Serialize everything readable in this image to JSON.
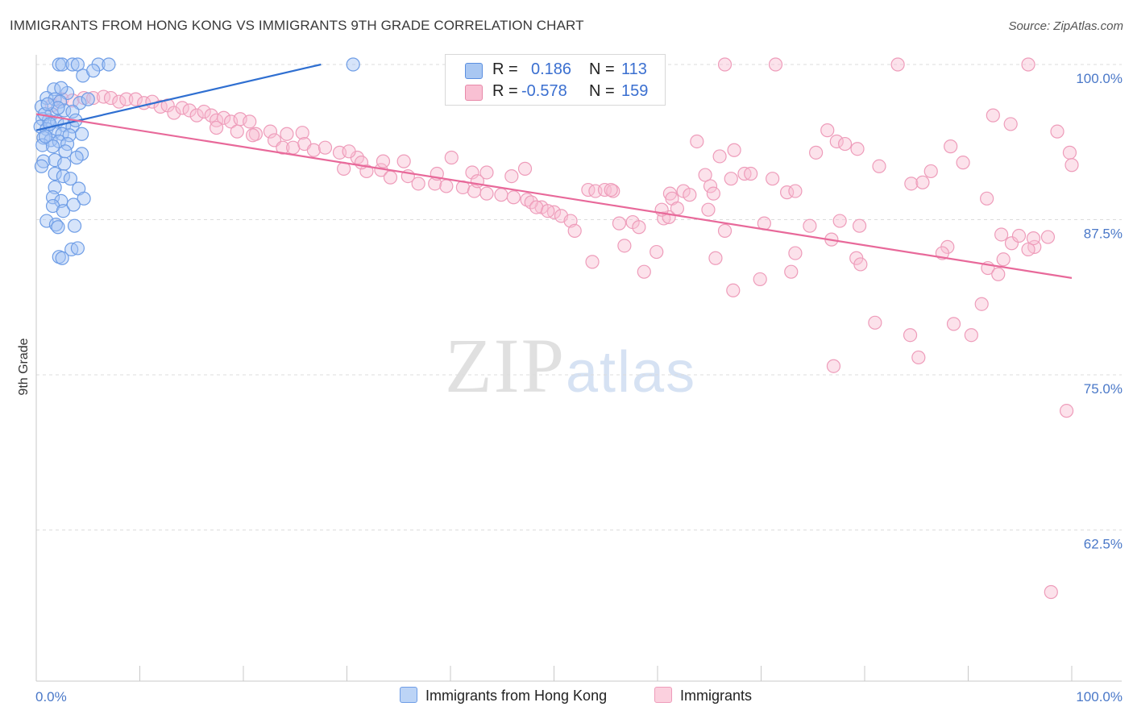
{
  "header": {
    "title": "IMMIGRANTS FROM HONG KONG VS IMMIGRANTS 9TH GRADE CORRELATION CHART",
    "source": "Source: ZipAtlas.com"
  },
  "watermark": {
    "zip": "ZIP",
    "atlas": "atlas"
  },
  "legend": {
    "rows": [
      {
        "r_label": "R =",
        "r_value": "0.186",
        "n_label": "N =",
        "n_value": "113",
        "color": "#a9c7f2",
        "border": "#5b8fe0"
      },
      {
        "r_label": "R =",
        "r_value": "-0.578",
        "n_label": "N =",
        "n_value": "159",
        "color": "#f9c0d3",
        "border": "#e889a9"
      }
    ]
  },
  "bottom_legend": {
    "items": [
      {
        "label": "Immigrants from Hong Kong",
        "color": "#bcd4f6",
        "border": "#6e9de6"
      },
      {
        "label": "Immigrants",
        "color": "#fbd0de",
        "border": "#ee9cba"
      }
    ]
  },
  "chart_data": {
    "type": "scatter",
    "ylabel": "9th Grade",
    "x_tick_labels": [
      "0.0%",
      "100.0%"
    ],
    "y_tick_labels": [
      "100.0%",
      "87.5%",
      "75.0%",
      "62.5%"
    ],
    "y_ticks": [
      100.0,
      87.5,
      75.0,
      62.5
    ],
    "xlim": [
      0,
      100
    ],
    "ylim": [
      50.0,
      101.0
    ],
    "grid": true,
    "colors": {
      "blue": "#6e9de6",
      "blue_fill": "rgba(165,196,243,0.45)",
      "pink": "#ee9cba",
      "pink_fill": "rgba(249,190,210,0.45)",
      "blue_line": "#2f6fd1",
      "pink_line": "#e8699a"
    },
    "series": [
      {
        "name": "Immigrants from Hong Kong",
        "trend": {
          "x": [
            0.0,
            27.5
          ],
          "y": [
            94.7,
            100.0
          ]
        },
        "points": [
          [
            2.2,
            100
          ],
          [
            2.5,
            100
          ],
          [
            3.5,
            100
          ],
          [
            4.0,
            100
          ],
          [
            6.0,
            100
          ],
          [
            7.0,
            100
          ],
          [
            30.6,
            100
          ],
          [
            4.5,
            99.1
          ],
          [
            5.5,
            99.5
          ],
          [
            1.7,
            98.0
          ],
          [
            3.0,
            97.7
          ],
          [
            2.4,
            98.1
          ],
          [
            1.0,
            97.3
          ],
          [
            1.8,
            97.2
          ],
          [
            2.3,
            97.0
          ],
          [
            4.2,
            96.9
          ],
          [
            5.0,
            97.2
          ],
          [
            0.5,
            96.6
          ],
          [
            1.5,
            96.0
          ],
          [
            2.7,
            96.3
          ],
          [
            3.5,
            96.2
          ],
          [
            0.6,
            95.6
          ],
          [
            1.2,
            95.5
          ],
          [
            2.0,
            95.4
          ],
          [
            2.7,
            95.1
          ],
          [
            3.5,
            95.0
          ],
          [
            0.4,
            95.0
          ],
          [
            1.0,
            94.8
          ],
          [
            1.8,
            94.6
          ],
          [
            2.5,
            94.4
          ],
          [
            3.2,
            94.3
          ],
          [
            0.7,
            94.1
          ],
          [
            1.4,
            93.9
          ],
          [
            2.2,
            93.8
          ],
          [
            3.0,
            93.6
          ],
          [
            4.4,
            94.4
          ],
          [
            0.6,
            93.5
          ],
          [
            1.6,
            93.4
          ],
          [
            2.8,
            93.0
          ],
          [
            4.4,
            92.8
          ],
          [
            0.7,
            92.2
          ],
          [
            1.8,
            92.3
          ],
          [
            2.7,
            92.0
          ],
          [
            3.9,
            92.5
          ],
          [
            0.5,
            91.8
          ],
          [
            1.8,
            91.2
          ],
          [
            2.6,
            91.0
          ],
          [
            3.3,
            90.8
          ],
          [
            1.8,
            90.1
          ],
          [
            4.1,
            90.0
          ],
          [
            1.6,
            89.3
          ],
          [
            2.4,
            89.0
          ],
          [
            4.6,
            89.2
          ],
          [
            1.6,
            88.6
          ],
          [
            2.6,
            88.2
          ],
          [
            3.6,
            88.7
          ],
          [
            1.0,
            87.4
          ],
          [
            1.9,
            87.1
          ],
          [
            3.7,
            87.0
          ],
          [
            2.1,
            86.9
          ],
          [
            3.4,
            85.1
          ],
          [
            4.0,
            85.2
          ],
          [
            2.2,
            84.5
          ],
          [
            2.5,
            84.4
          ],
          [
            0.8,
            96.0
          ],
          [
            1.3,
            95.2
          ],
          [
            2.1,
            96.5
          ],
          [
            0.9,
            94.2
          ],
          [
            1.1,
            96.8
          ],
          [
            3.8,
            95.5
          ]
        ]
      },
      {
        "name": "Immigrants",
        "trend": {
          "x": [
            0.0,
            100.0
          ],
          "y": [
            96.0,
            82.8
          ]
        },
        "points": [
          [
            66.5,
            100
          ],
          [
            71.4,
            100
          ],
          [
            83.2,
            100
          ],
          [
            95.8,
            100
          ],
          [
            1.5,
            96.7
          ],
          [
            2.5,
            97.2
          ],
          [
            3.5,
            97.1
          ],
          [
            4.6,
            97.3
          ],
          [
            5.5,
            97.3
          ],
          [
            6.5,
            97.4
          ],
          [
            7.2,
            97.3
          ],
          [
            8.0,
            97.0
          ],
          [
            8.7,
            97.2
          ],
          [
            9.6,
            97.2
          ],
          [
            10.4,
            96.9
          ],
          [
            11.2,
            97.0
          ],
          [
            12.0,
            96.6
          ],
          [
            12.7,
            96.7
          ],
          [
            13.3,
            96.1
          ],
          [
            14.1,
            96.5
          ],
          [
            14.8,
            96.3
          ],
          [
            15.5,
            95.9
          ],
          [
            16.2,
            96.2
          ],
          [
            16.9,
            95.9
          ],
          [
            17.4,
            95.5
          ],
          [
            18.1,
            95.7
          ],
          [
            18.8,
            95.4
          ],
          [
            19.7,
            95.6
          ],
          [
            20.6,
            95.4
          ],
          [
            17.4,
            94.9
          ],
          [
            19.4,
            94.6
          ],
          [
            21.2,
            94.4
          ],
          [
            22.6,
            94.6
          ],
          [
            24.2,
            94.4
          ],
          [
            25.7,
            94.5
          ],
          [
            20.9,
            94.3
          ],
          [
            23.0,
            93.9
          ],
          [
            23.8,
            93.3
          ],
          [
            24.8,
            93.3
          ],
          [
            25.9,
            93.6
          ],
          [
            26.8,
            93.1
          ],
          [
            27.9,
            93.3
          ],
          [
            29.3,
            92.9
          ],
          [
            31.0,
            92.5
          ],
          [
            29.7,
            91.6
          ],
          [
            31.9,
            91.4
          ],
          [
            33.3,
            91.5
          ],
          [
            34.2,
            90.9
          ],
          [
            35.9,
            91.0
          ],
          [
            36.9,
            90.4
          ],
          [
            38.5,
            90.4
          ],
          [
            39.6,
            90.2
          ],
          [
            41.2,
            90.1
          ],
          [
            42.3,
            89.8
          ],
          [
            43.5,
            89.6
          ],
          [
            44.9,
            89.5
          ],
          [
            46.1,
            89.3
          ],
          [
            47.4,
            89.1
          ],
          [
            48.8,
            88.5
          ],
          [
            50.0,
            88.1
          ],
          [
            30.2,
            93.0
          ],
          [
            31.4,
            92.1
          ],
          [
            33.5,
            92.2
          ],
          [
            35.5,
            92.2
          ],
          [
            38.7,
            91.2
          ],
          [
            40.1,
            92.5
          ],
          [
            42.1,
            91.3
          ],
          [
            43.5,
            91.3
          ],
          [
            42.6,
            90.6
          ],
          [
            45.9,
            91.0
          ],
          [
            47.2,
            91.6
          ],
          [
            47.8,
            88.9
          ],
          [
            48.3,
            88.5
          ],
          [
            49.4,
            88.2
          ],
          [
            50.7,
            87.8
          ],
          [
            51.6,
            87.4
          ],
          [
            52.0,
            86.6
          ],
          [
            53.3,
            89.9
          ],
          [
            54.0,
            89.8
          ],
          [
            54.9,
            89.9
          ],
          [
            55.7,
            89.8
          ],
          [
            55.5,
            89.9
          ],
          [
            56.3,
            87.2
          ],
          [
            56.8,
            85.4
          ],
          [
            57.6,
            87.3
          ],
          [
            58.2,
            86.9
          ],
          [
            60.6,
            87.6
          ],
          [
            61.1,
            87.7
          ],
          [
            59.9,
            84.9
          ],
          [
            61.2,
            89.6
          ],
          [
            62.5,
            89.8
          ],
          [
            63.1,
            89.5
          ],
          [
            64.6,
            91.1
          ],
          [
            66.0,
            92.6
          ],
          [
            65.1,
            90.2
          ],
          [
            65.4,
            89.6
          ],
          [
            67.1,
            90.8
          ],
          [
            67.4,
            93.1
          ],
          [
            68.4,
            91.2
          ],
          [
            69.0,
            91.2
          ],
          [
            53.7,
            84.1
          ],
          [
            58.7,
            83.3
          ],
          [
            63.8,
            93.8
          ],
          [
            60.4,
            88.3
          ],
          [
            61.4,
            89.2
          ],
          [
            61.9,
            88.4
          ],
          [
            64.9,
            88.3
          ],
          [
            65.6,
            84.4
          ],
          [
            66.5,
            86.6
          ],
          [
            70.3,
            87.2
          ],
          [
            71.1,
            90.8
          ],
          [
            72.5,
            89.7
          ],
          [
            73.3,
            89.8
          ],
          [
            74.7,
            87.0
          ],
          [
            76.8,
            85.9
          ],
          [
            77.6,
            87.4
          ],
          [
            79.5,
            87.0
          ],
          [
            73.3,
            84.8
          ],
          [
            75.3,
            92.9
          ],
          [
            76.4,
            94.7
          ],
          [
            77.3,
            93.8
          ],
          [
            78.1,
            93.6
          ],
          [
            79.3,
            93.2
          ],
          [
            81.4,
            91.8
          ],
          [
            84.5,
            90.4
          ],
          [
            85.6,
            90.5
          ],
          [
            86.4,
            91.4
          ],
          [
            88.3,
            93.4
          ],
          [
            89.5,
            92.1
          ],
          [
            91.8,
            89.2
          ],
          [
            93.2,
            86.3
          ],
          [
            94.2,
            85.6
          ],
          [
            96.4,
            85.3
          ],
          [
            97.7,
            86.1
          ],
          [
            98.6,
            94.6
          ],
          [
            99.8,
            92.9
          ],
          [
            100.0,
            91.9
          ],
          [
            92.4,
            95.9
          ],
          [
            94.1,
            95.2
          ],
          [
            99.5,
            72.1
          ],
          [
            98.0,
            57.5
          ],
          [
            91.3,
            80.7
          ],
          [
            88.6,
            79.1
          ],
          [
            90.3,
            78.2
          ],
          [
            85.2,
            76.4
          ],
          [
            84.4,
            78.2
          ],
          [
            81.0,
            79.2
          ],
          [
            77.0,
            75.7
          ],
          [
            91.9,
            83.6
          ],
          [
            92.9,
            83.1
          ],
          [
            93.4,
            84.3
          ],
          [
            88.0,
            85.3
          ],
          [
            87.5,
            84.8
          ],
          [
            69.9,
            82.7
          ],
          [
            72.9,
            83.3
          ],
          [
            67.3,
            81.8
          ],
          [
            79.2,
            84.4
          ],
          [
            79.6,
            83.9
          ],
          [
            94.9,
            86.2
          ],
          [
            95.8,
            85.1
          ],
          [
            96.3,
            86.0
          ]
        ]
      }
    ]
  }
}
